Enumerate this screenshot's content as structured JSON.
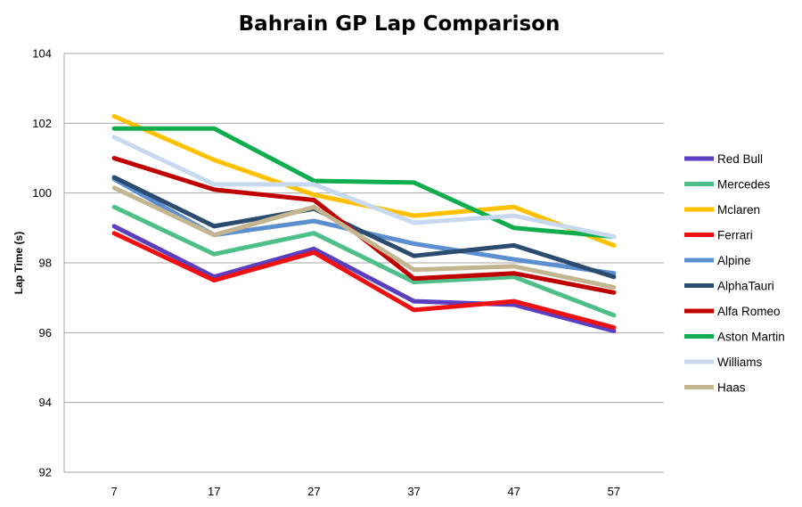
{
  "chart_data": {
    "type": "line",
    "title": "Bahrain GP Lap Comparison",
    "xlabel": "",
    "ylabel": "Lap Time (s)",
    "x": [
      7,
      17,
      27,
      37,
      47,
      57
    ],
    "ylim": [
      92,
      104
    ],
    "yticks": [
      92,
      94,
      96,
      98,
      100,
      102,
      104
    ],
    "grid": "horizontal",
    "legend": "right",
    "series": [
      {
        "name": "Red Bull",
        "color": "#5b3fbf",
        "values": [
          99.05,
          97.6,
          98.4,
          96.9,
          96.8,
          96.05
        ]
      },
      {
        "name": "Mercedes",
        "color": "#4ebf88",
        "values": [
          99.6,
          98.25,
          98.85,
          97.45,
          97.6,
          96.5
        ]
      },
      {
        "name": "Mclaren",
        "color": "#ffc000",
        "values": [
          102.2,
          100.95,
          99.95,
          99.35,
          99.6,
          98.5
        ]
      },
      {
        "name": "Ferrari",
        "color": "#ee1111",
        "values": [
          98.85,
          97.5,
          98.3,
          96.65,
          96.9,
          96.15
        ]
      },
      {
        "name": "Alpine",
        "color": "#5b8fd0",
        "values": [
          100.4,
          98.8,
          99.2,
          98.55,
          98.1,
          97.7
        ]
      },
      {
        "name": "AlphaTauri",
        "color": "#2b4c6f",
        "values": [
          100.45,
          99.05,
          99.55,
          98.2,
          98.5,
          97.6
        ]
      },
      {
        "name": "Alfa Romeo",
        "color": "#c00000",
        "values": [
          101.0,
          100.1,
          99.8,
          97.55,
          97.7,
          97.15
        ]
      },
      {
        "name": "Aston Martin",
        "color": "#0fad4e",
        "values": [
          101.85,
          101.85,
          100.35,
          100.3,
          99.0,
          98.75
        ]
      },
      {
        "name": "Williams",
        "color": "#c6d9ef",
        "values": [
          101.6,
          100.25,
          100.25,
          99.15,
          99.35,
          98.75
        ]
      },
      {
        "name": "Haas",
        "color": "#c2b58f",
        "values": [
          100.15,
          98.8,
          99.6,
          97.8,
          97.9,
          97.3
        ]
      }
    ]
  }
}
